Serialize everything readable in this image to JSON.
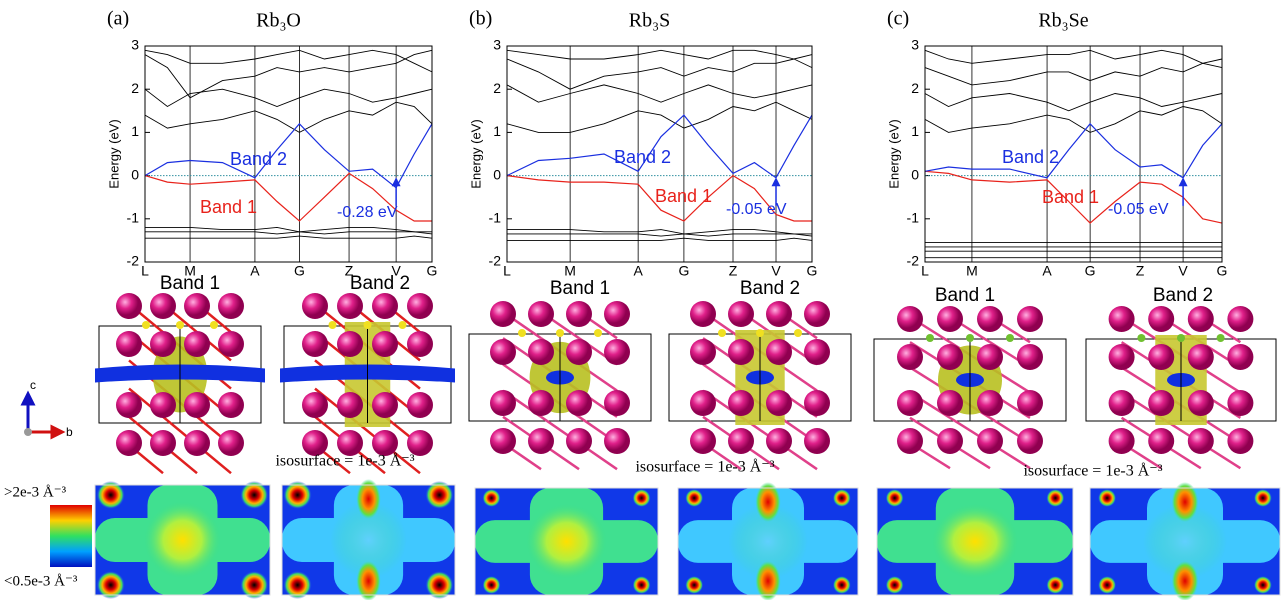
{
  "chart_data": [
    {
      "type": "line",
      "panel_label": "(a)",
      "title": "Rb₃O",
      "ylabel": "Energy (eV)",
      "x": [
        0,
        0.078,
        0.157,
        0.27,
        0.383,
        0.46,
        0.538,
        0.625,
        0.711,
        0.793,
        0.875,
        0.938,
        1
      ],
      "xlim": [
        0,
        1
      ],
      "ylim": [
        -2,
        3
      ],
      "yticks": [
        -2,
        -1,
        0,
        1,
        2,
        3
      ],
      "xticks": [
        {
          "value": 0,
          "label": "L"
        },
        {
          "value": 0.157,
          "label": "M"
        },
        {
          "value": 0.383,
          "label": "A"
        },
        {
          "value": 0.538,
          "label": "G"
        },
        {
          "value": 0.711,
          "label": "Z"
        },
        {
          "value": 0.875,
          "label": "V"
        },
        {
          "value": 1,
          "label": "G"
        }
      ],
      "series": [
        {
          "name": "Band 1",
          "color": "#e8221b",
          "values": [
            0,
            -0.15,
            -0.2,
            -0.15,
            -0.1,
            -0.6,
            -1.05,
            -0.5,
            0.05,
            -0.3,
            -0.8,
            -1.05,
            -1.05
          ]
        },
        {
          "name": "Band 2",
          "color": "#1a2fe0",
          "values": [
            0,
            0.3,
            0.35,
            0.3,
            -0.05,
            0.6,
            1.2,
            0.6,
            0.1,
            0.15,
            -0.28,
            0.5,
            1.2
          ]
        }
      ],
      "background_bands": [
        {
          "color": "#000000",
          "values": [
            1.4,
            1.1,
            1.2,
            1.3,
            1.5,
            1.3,
            1.0,
            1.3,
            1.5,
            1.4,
            1.7,
            1.6,
            1.2
          ]
        },
        {
          "color": "#000000",
          "values": [
            2.0,
            1.6,
            1.9,
            2.0,
            1.8,
            1.6,
            1.8,
            2.0,
            1.9,
            1.7,
            1.8,
            1.9,
            2.0
          ]
        },
        {
          "color": "#000000",
          "values": [
            2.8,
            2.5,
            1.8,
            2.2,
            2.3,
            2.5,
            2.4,
            2.5,
            2.4,
            2.5,
            2.6,
            2.8,
            2.9
          ]
        },
        {
          "color": "#000000",
          "values": [
            2.9,
            2.8,
            2.6,
            2.6,
            2.7,
            2.8,
            2.9,
            2.7,
            2.8,
            2.9,
            2.8,
            2.6,
            2.4
          ]
        },
        {
          "color": "#000000",
          "values": [
            -1.2,
            -1.2,
            -1.2,
            -1.25,
            -1.25,
            -1.2,
            -1.3,
            -1.25,
            -1.2,
            -1.2,
            -1.25,
            -1.3,
            -1.3
          ]
        },
        {
          "color": "#000000",
          "values": [
            -1.3,
            -1.3,
            -1.3,
            -1.3,
            -1.3,
            -1.35,
            -1.3,
            -1.35,
            -1.3,
            -1.3,
            -1.3,
            -1.3,
            -1.35
          ]
        },
        {
          "color": "#000000",
          "values": [
            -1.45,
            -1.45,
            -1.45,
            -1.45,
            -1.45,
            -1.45,
            -1.4,
            -1.45,
            -1.45,
            -1.45,
            -1.45,
            -1.4,
            -1.45
          ]
        }
      ],
      "annotation": "-0.28 eV"
    },
    {
      "type": "line",
      "panel_label": "(b)",
      "title": "Rb₃S",
      "ylabel": "Energy (eV)",
      "x": [
        0,
        0.103,
        0.207,
        0.318,
        0.43,
        0.505,
        0.58,
        0.66,
        0.741,
        0.811,
        0.882,
        0.941,
        1
      ],
      "xlim": [
        0,
        1
      ],
      "ylim": [
        -2,
        3
      ],
      "yticks": [
        -2,
        -1,
        0,
        1,
        2,
        3
      ],
      "xticks": [
        {
          "value": 0,
          "label": "L"
        },
        {
          "value": 0.207,
          "label": "M"
        },
        {
          "value": 0.43,
          "label": "A"
        },
        {
          "value": 0.58,
          "label": "G"
        },
        {
          "value": 0.741,
          "label": "Z"
        },
        {
          "value": 0.882,
          "label": "V"
        },
        {
          "value": 1,
          "label": "G"
        }
      ],
      "series": [
        {
          "name": "Band 1",
          "color": "#e8221b",
          "values": [
            0,
            -0.1,
            -0.15,
            -0.15,
            -0.2,
            -0.8,
            -1.05,
            -0.5,
            0.0,
            -0.3,
            -0.9,
            -1.05,
            -1.05
          ]
        },
        {
          "name": "Band 2",
          "color": "#1a2fe0",
          "values": [
            0,
            0.35,
            0.4,
            0.5,
            0.1,
            0.9,
            1.4,
            0.7,
            0.05,
            0.3,
            -0.05,
            0.7,
            1.4
          ]
        }
      ],
      "background_bands": [
        {
          "color": "#000000",
          "values": [
            1.2,
            1.0,
            1.0,
            1.2,
            1.5,
            1.4,
            1.1,
            1.3,
            1.6,
            1.5,
            1.7,
            1.5,
            1.3
          ]
        },
        {
          "color": "#000000",
          "values": [
            2.1,
            1.7,
            1.9,
            2.1,
            1.9,
            1.7,
            1.9,
            2.1,
            1.9,
            1.8,
            1.9,
            2.0,
            2.1
          ]
        },
        {
          "color": "#000000",
          "values": [
            2.7,
            2.4,
            2.0,
            2.3,
            2.4,
            2.5,
            2.3,
            2.5,
            2.4,
            2.6,
            2.6,
            2.7,
            2.8
          ]
        },
        {
          "color": "#000000",
          "values": [
            2.9,
            2.8,
            2.7,
            2.7,
            2.8,
            2.9,
            2.8,
            2.7,
            2.9,
            2.9,
            2.8,
            2.7,
            2.5
          ]
        },
        {
          "color": "#000000",
          "values": [
            -1.25,
            -1.25,
            -1.25,
            -1.3,
            -1.3,
            -1.25,
            -1.35,
            -1.3,
            -1.25,
            -1.25,
            -1.3,
            -1.35,
            -1.35
          ]
        },
        {
          "color": "#000000",
          "values": [
            -1.35,
            -1.35,
            -1.35,
            -1.35,
            -1.35,
            -1.4,
            -1.35,
            -1.4,
            -1.35,
            -1.35,
            -1.35,
            -1.35,
            -1.4
          ]
        },
        {
          "color": "#000000",
          "values": [
            -1.5,
            -1.5,
            -1.5,
            -1.5,
            -1.5,
            -1.5,
            -1.45,
            -1.5,
            -1.5,
            -1.5,
            -1.5,
            -1.45,
            -1.5
          ]
        }
      ],
      "annotation": "-0.05 eV"
    },
    {
      "type": "line",
      "panel_label": "(c)",
      "title": "Rb₃Se",
      "ylabel": "Energy (eV)",
      "x": [
        0,
        0.079,
        0.158,
        0.285,
        0.411,
        0.484,
        0.556,
        0.64,
        0.724,
        0.797,
        0.869,
        0.935,
        1
      ],
      "xlim": [
        0,
        1
      ],
      "ylim": [
        -2,
        3
      ],
      "yticks": [
        -2,
        -1,
        0,
        1,
        2,
        3
      ],
      "xticks": [
        {
          "value": 0,
          "label": "L"
        },
        {
          "value": 0.158,
          "label": "M"
        },
        {
          "value": 0.411,
          "label": "A"
        },
        {
          "value": 0.556,
          "label": "G"
        },
        {
          "value": 0.724,
          "label": "Z"
        },
        {
          "value": 0.869,
          "label": "V"
        },
        {
          "value": 1,
          "label": "G"
        }
      ],
      "series": [
        {
          "name": "Band 1",
          "color": "#e8221b",
          "values": [
            0.1,
            0.05,
            -0.1,
            -0.15,
            -0.1,
            -0.6,
            -1.1,
            -0.6,
            -0.15,
            -0.2,
            -0.5,
            -1.0,
            -1.1
          ]
        },
        {
          "name": "Band 2",
          "color": "#1a2fe0",
          "values": [
            0.1,
            0.2,
            0.15,
            0.15,
            -0.05,
            0.6,
            1.2,
            0.6,
            0.2,
            0.25,
            -0.05,
            0.7,
            1.2
          ]
        }
      ],
      "background_bands": [
        {
          "color": "#000000",
          "values": [
            1.3,
            1.0,
            1.1,
            1.2,
            1.4,
            1.3,
            1.0,
            1.2,
            1.5,
            1.4,
            1.6,
            1.5,
            1.2
          ]
        },
        {
          "color": "#000000",
          "values": [
            1.9,
            1.6,
            1.8,
            1.9,
            1.7,
            1.5,
            1.7,
            1.9,
            1.8,
            1.6,
            1.7,
            1.8,
            1.9
          ]
        },
        {
          "color": "#000000",
          "values": [
            2.5,
            2.3,
            2.1,
            2.2,
            2.4,
            2.4,
            2.2,
            2.4,
            2.3,
            2.5,
            2.4,
            2.6,
            2.7
          ]
        },
        {
          "color": "#000000",
          "values": [
            2.9,
            2.7,
            2.6,
            2.7,
            2.8,
            2.8,
            2.9,
            2.7,
            2.8,
            2.9,
            2.8,
            2.6,
            2.5
          ]
        },
        {
          "color": "#000000",
          "values": [
            -1.55,
            -1.55,
            -1.55,
            -1.55,
            -1.55,
            -1.55,
            -1.55,
            -1.55,
            -1.55,
            -1.55,
            -1.55,
            -1.55,
            -1.55
          ]
        },
        {
          "color": "#000000",
          "values": [
            -1.65,
            -1.65,
            -1.65,
            -1.65,
            -1.65,
            -1.65,
            -1.65,
            -1.65,
            -1.65,
            -1.65,
            -1.65,
            -1.65,
            -1.65
          ]
        },
        {
          "color": "#000000",
          "values": [
            -1.75,
            -1.75,
            -1.75,
            -1.75,
            -1.75,
            -1.75,
            -1.75,
            -1.75,
            -1.75,
            -1.75,
            -1.75,
            -1.75,
            -1.75
          ]
        },
        {
          "color": "#000000",
          "values": [
            -1.9,
            -1.9,
            -1.9,
            -1.9,
            -1.9,
            -1.9,
            -1.9,
            -1.9,
            -1.9,
            -1.9,
            -1.9,
            -1.9,
            -1.9
          ]
        }
      ],
      "annotation": "-0.05 eV"
    }
  ],
  "structures": [
    {
      "labels": [
        "Band 1",
        "Band 2"
      ],
      "isosurface": "isosurface = 1e-3 Å⁻³"
    },
    {
      "labels": [
        "Band 1",
        "Band 2"
      ],
      "isosurface": "isosurface = 1e-3 Å⁻³"
    },
    {
      "labels": [
        "Band 1",
        "Band 2"
      ],
      "isosurface": "isosurface = 1e-3 Å⁻³"
    }
  ],
  "axes_icon": {
    "vertical": "c",
    "horizontal": "b"
  },
  "colorbar": {
    "max_label": ">2e-3 Å⁻³",
    "min_label": "<0.5e-3 Å⁻³"
  }
}
